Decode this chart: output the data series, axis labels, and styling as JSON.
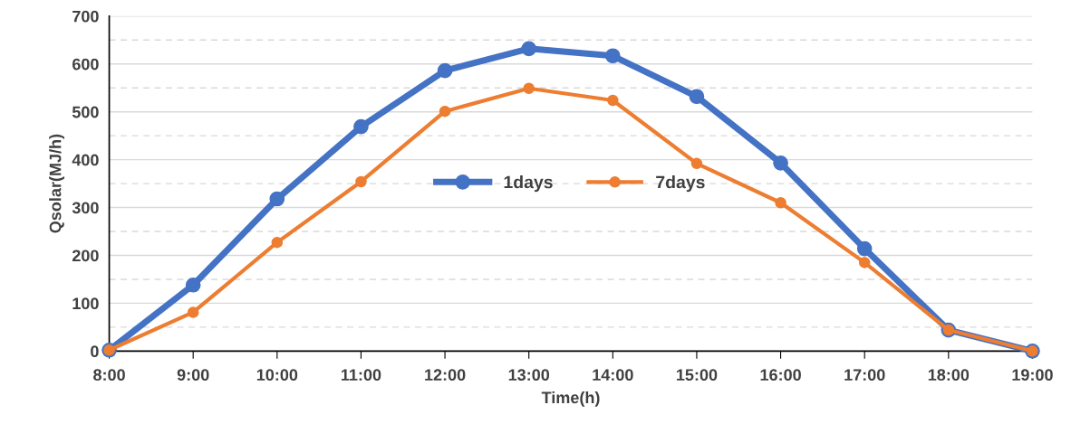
{
  "chart_data": {
    "type": "line",
    "xlabel": "Time(h)",
    "ylabel": "Qsolar(MJ/h)",
    "categories": [
      "8:00",
      "9:00",
      "10:00",
      "11:00",
      "12:00",
      "13:00",
      "14:00",
      "15:00",
      "16:00",
      "17:00",
      "18:00",
      "19:00"
    ],
    "series": [
      {
        "name": "1days",
        "color": "#4472c4",
        "values": [
          2,
          138,
          318,
          469,
          586,
          632,
          617,
          532,
          393,
          214,
          44,
          0
        ]
      },
      {
        "name": "7days",
        "color": "#ed7d31",
        "values": [
          2,
          81,
          227,
          354,
          501,
          549,
          524,
          392,
          310,
          185,
          44,
          0
        ]
      }
    ],
    "ylim": [
      0,
      700
    ],
    "yticks": [
      0,
      {
        "value": 50,
        "label": null
      },
      100,
      {
        "value": 150,
        "label": null
      },
      200,
      {
        "value": 250,
        "label": null
      },
      300,
      {
        "value": 350,
        "label": null
      },
      400,
      {
        "value": 450,
        "label": null
      },
      500,
      {
        "value": 550,
        "label": null
      },
      600,
      {
        "value": 650,
        "label": null
      },
      700
    ],
    "grid": "y",
    "legend": "center",
    "marker": "circle",
    "line_style": "solid"
  }
}
